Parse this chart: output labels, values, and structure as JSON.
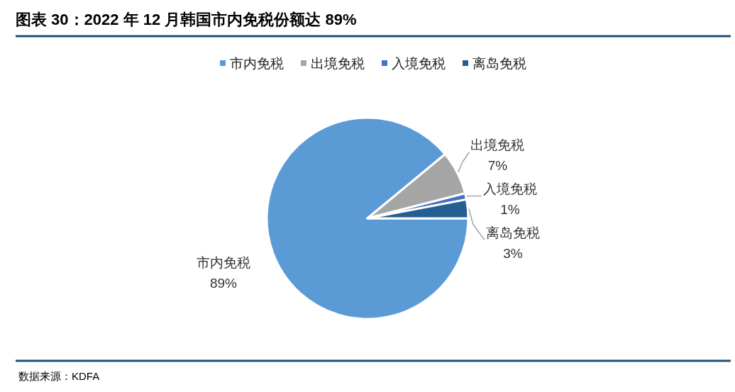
{
  "chart_data": {
    "type": "pie",
    "title": "图表 30：2022 年 12 月韩国市内免税份额达 89%",
    "categories": [
      "市内免税",
      "出境免税",
      "入境免税",
      "离岛免税"
    ],
    "values": [
      89,
      7,
      1,
      3
    ],
    "colors": [
      "#5b9bd5",
      "#a5a5a5",
      "#4472c4",
      "#255e91"
    ],
    "value_labels": [
      "89%",
      "7%",
      "1%",
      "3%"
    ],
    "legend": "top",
    "annotations": [
      "数据来源：KDFA"
    ]
  }
}
